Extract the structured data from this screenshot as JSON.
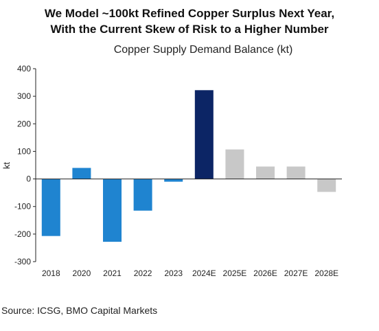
{
  "header": {
    "line1": "We Model ~100kt Refined Copper Surplus Next Year,",
    "line2": "With the Current Skew of Risk to a Higher Number"
  },
  "source": "Source: ICSG, BMO Capital Markets",
  "colors": {
    "actual": "#1f84d0",
    "highlight": "#0c2565",
    "estimate": "#c8c8c8",
    "axis": "#222222"
  },
  "chart_data": {
    "type": "bar",
    "title": "Copper Supply Demand Balance (kt)",
    "ylabel": "kt",
    "xlabel": "",
    "ylim": [
      -300,
      400
    ],
    "yticks": [
      400,
      300,
      200,
      100,
      0,
      -100,
      -200,
      -300
    ],
    "grid": false,
    "categories": [
      "2018",
      "2020",
      "2021",
      "2022",
      "2023",
      "2024E",
      "2025E",
      "2026E",
      "2027E",
      "2028E"
    ],
    "values": [
      -207,
      40,
      -228,
      -115,
      -10,
      322,
      107,
      45,
      45,
      -47
    ],
    "bar_colors": [
      "actual",
      "actual",
      "actual",
      "actual",
      "actual",
      "highlight",
      "estimate",
      "estimate",
      "estimate",
      "estimate"
    ]
  }
}
